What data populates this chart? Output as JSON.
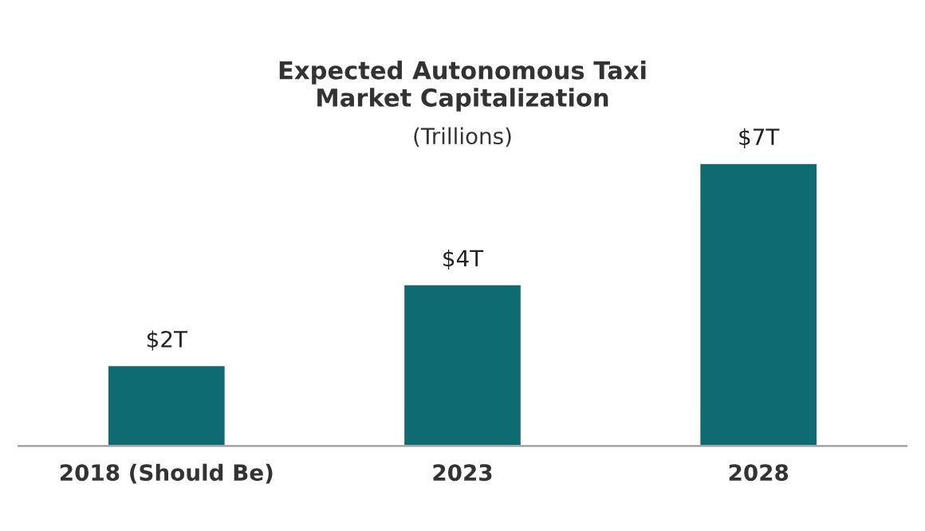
{
  "chart_data": {
    "type": "bar",
    "title": "Expected Autonomous Taxi\nMarket Capitalization",
    "subtitle": "(Trillions)",
    "categories": [
      "2018 (Should Be)",
      "2023",
      "2028"
    ],
    "values": [
      2,
      4,
      7
    ],
    "value_labels": [
      "$2T",
      "$4T",
      "$7T"
    ],
    "color": "#0e6b72"
  }
}
